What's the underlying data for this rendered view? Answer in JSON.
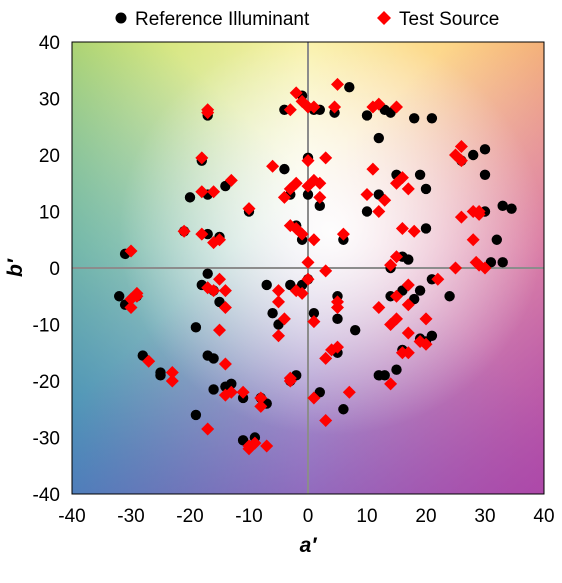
{
  "chart_data": {
    "type": "scatter",
    "xlabel": "a′",
    "ylabel": "b′",
    "xlim": [
      -40,
      40
    ],
    "ylim": [
      -40,
      40
    ],
    "xticks": [
      -40,
      -30,
      -20,
      -10,
      0,
      10,
      20,
      30,
      40
    ],
    "yticks": [
      -40,
      -30,
      -20,
      -10,
      0,
      10,
      20,
      30,
      40
    ],
    "grid": false,
    "zero_lines": true,
    "legend_position": "top",
    "background": "hue-gradient",
    "series": [
      {
        "name": "Reference Illuminant",
        "marker": "circle",
        "color": "#000000",
        "points": [
          [
            -1,
            30.5
          ],
          [
            -4,
            28
          ],
          [
            1,
            28
          ],
          [
            2,
            28
          ],
          [
            4.5,
            27.5
          ],
          [
            7,
            32
          ],
          [
            10,
            27
          ],
          [
            13,
            28
          ],
          [
            14,
            27.5
          ],
          [
            18,
            26.5
          ],
          [
            21,
            26.5
          ],
          [
            12,
            23
          ],
          [
            -17,
            27
          ],
          [
            -18,
            19
          ],
          [
            -14,
            14.5
          ],
          [
            -17,
            13
          ],
          [
            -20,
            12.5
          ],
          [
            0,
            19.5
          ],
          [
            -4,
            17.5
          ],
          [
            -3,
            13
          ],
          [
            0,
            13
          ],
          [
            2,
            11
          ],
          [
            -2,
            7.5
          ],
          [
            -1,
            5
          ],
          [
            -10,
            10
          ],
          [
            -21,
            6.5
          ],
          [
            -17,
            6
          ],
          [
            -15,
            5.5
          ],
          [
            6,
            5
          ],
          [
            10,
            10
          ],
          [
            12,
            13
          ],
          [
            15,
            16.5
          ],
          [
            19,
            16.5
          ],
          [
            20,
            14
          ],
          [
            26,
            19
          ],
          [
            28,
            20
          ],
          [
            30,
            21
          ],
          [
            30,
            16.5
          ],
          [
            30,
            10
          ],
          [
            32,
            5
          ],
          [
            31,
            1
          ],
          [
            33,
            11
          ],
          [
            34.5,
            10.5
          ],
          [
            33,
            1
          ],
          [
            20,
            7
          ],
          [
            17,
            1.5
          ],
          [
            16,
            2
          ],
          [
            14,
            0
          ],
          [
            -31,
            2.5
          ],
          [
            -32,
            -5
          ],
          [
            -31,
            -6.5
          ],
          [
            -29,
            -5
          ],
          [
            -17,
            -1
          ],
          [
            -18,
            -3
          ],
          [
            -16,
            -4
          ],
          [
            -15,
            -6
          ],
          [
            -7,
            -3
          ],
          [
            -6,
            -8
          ],
          [
            -5,
            -10
          ],
          [
            -3,
            -3
          ],
          [
            -1,
            -3
          ],
          [
            0,
            -2
          ],
          [
            1,
            -8
          ],
          [
            5,
            -5
          ],
          [
            5,
            -9
          ],
          [
            8,
            -11
          ],
          [
            14,
            -5
          ],
          [
            16,
            -4
          ],
          [
            18,
            -5.5
          ],
          [
            19,
            -4
          ],
          [
            19,
            -12.5
          ],
          [
            20,
            -13
          ],
          [
            21,
            -12
          ],
          [
            21,
            -2
          ],
          [
            24,
            -5
          ],
          [
            15,
            -18
          ],
          [
            13,
            -19
          ],
          [
            12,
            -19
          ],
          [
            16,
            -14.5
          ],
          [
            -28,
            -15.5
          ],
          [
            -25,
            -18.5
          ],
          [
            -25,
            -19
          ],
          [
            -19,
            -10.5
          ],
          [
            -17,
            -15.5
          ],
          [
            -16,
            -16
          ],
          [
            -16,
            -21.5
          ],
          [
            -14,
            -21
          ],
          [
            -13,
            -20.5
          ],
          [
            -11,
            -23
          ],
          [
            -8,
            -23
          ],
          [
            -7,
            -24
          ],
          [
            -3,
            -20
          ],
          [
            -2,
            -19
          ],
          [
            2,
            -22
          ],
          [
            5,
            -15
          ],
          [
            6,
            -25
          ],
          [
            -19,
            -26
          ],
          [
            -9,
            -30
          ],
          [
            -11,
            -30.5
          ]
        ]
      },
      {
        "name": "Test Source",
        "marker": "diamond",
        "color": "#ff0000",
        "points": [
          [
            -2,
            31
          ],
          [
            5,
            32.5
          ],
          [
            -1,
            29.5
          ],
          [
            0,
            28.5
          ],
          [
            1,
            28.5
          ],
          [
            -3,
            28
          ],
          [
            4.5,
            28.5
          ],
          [
            11,
            28.5
          ],
          [
            12,
            29
          ],
          [
            15,
            28.5
          ],
          [
            -17,
            28
          ],
          [
            -17,
            27.5
          ],
          [
            -18,
            19.5
          ],
          [
            -13,
            15.5
          ],
          [
            -16,
            13.5
          ],
          [
            -18,
            13.5
          ],
          [
            -6,
            18
          ],
          [
            0,
            19
          ],
          [
            3,
            19.5
          ],
          [
            1,
            15.5
          ],
          [
            2,
            15
          ],
          [
            -2,
            15
          ],
          [
            -3,
            14
          ],
          [
            0,
            14.5
          ],
          [
            -4,
            12.5
          ],
          [
            2,
            12.5
          ],
          [
            -10,
            10.5
          ],
          [
            -3,
            7.5
          ],
          [
            -2,
            7
          ],
          [
            -1,
            6
          ],
          [
            1,
            5
          ],
          [
            -18,
            6
          ],
          [
            -21,
            6.5
          ],
          [
            -16,
            4.5
          ],
          [
            -15,
            5
          ],
          [
            6,
            6
          ],
          [
            10,
            13
          ],
          [
            11,
            17.5
          ],
          [
            12,
            10
          ],
          [
            13,
            12
          ],
          [
            15,
            15
          ],
          [
            16,
            16
          ],
          [
            17,
            14
          ],
          [
            16,
            7
          ],
          [
            18,
            6.5
          ],
          [
            15,
            2
          ],
          [
            14,
            0.5
          ],
          [
            25,
            20
          ],
          [
            26,
            21.5
          ],
          [
            26,
            19
          ],
          [
            26,
            9
          ],
          [
            29,
            10
          ],
          [
            28,
            10
          ],
          [
            29,
            9.5
          ],
          [
            28,
            5
          ],
          [
            29,
            0.5
          ],
          [
            30,
            0
          ],
          [
            28.5,
            1
          ],
          [
            -30,
            3
          ],
          [
            -29,
            -4.5
          ],
          [
            -29,
            -5
          ],
          [
            -30,
            -5.5
          ],
          [
            -30,
            -7
          ],
          [
            -15,
            -2
          ],
          [
            -16,
            -4
          ],
          [
            -14,
            -4
          ],
          [
            -17,
            -3.5
          ],
          [
            -14,
            -7
          ],
          [
            -5,
            -4
          ],
          [
            -5,
            -6
          ],
          [
            -4,
            -9
          ],
          [
            -5,
            -12
          ],
          [
            -2,
            -4
          ],
          [
            -1,
            -4.5
          ],
          [
            0,
            -2
          ],
          [
            0,
            1
          ],
          [
            3,
            -0.5
          ],
          [
            5,
            -6
          ],
          [
            5,
            -7
          ],
          [
            1,
            -9.5
          ],
          [
            3,
            -16
          ],
          [
            4,
            -14.5
          ],
          [
            5,
            -14
          ],
          [
            12,
            -7
          ],
          [
            15,
            -5
          ],
          [
            17,
            -3
          ],
          [
            17,
            -6.5
          ],
          [
            14,
            -10
          ],
          [
            15,
            -9
          ],
          [
            17,
            -11.5
          ],
          [
            17,
            -15
          ],
          [
            16,
            -15
          ],
          [
            20,
            -13.5
          ],
          [
            20,
            -9
          ],
          [
            19,
            -13
          ],
          [
            22,
            -2
          ],
          [
            25,
            0
          ],
          [
            14,
            -20.5
          ],
          [
            -27,
            -16.5
          ],
          [
            -23,
            -18.5
          ],
          [
            -23,
            -20
          ],
          [
            -15,
            -11
          ],
          [
            -14,
            -17
          ],
          [
            -14,
            -22.5
          ],
          [
            -17,
            -28.5
          ],
          [
            -13,
            -22
          ],
          [
            -11,
            -22
          ],
          [
            -8,
            -24.5
          ],
          [
            -8,
            -23
          ],
          [
            -9,
            -31
          ],
          [
            -7,
            -31.5
          ],
          [
            -10,
            -31.5
          ],
          [
            -3,
            -19.5
          ],
          [
            -3,
            -20
          ],
          [
            1,
            -23
          ],
          [
            3,
            -27
          ],
          [
            7,
            -22
          ],
          [
            -10,
            -32
          ]
        ]
      }
    ]
  }
}
